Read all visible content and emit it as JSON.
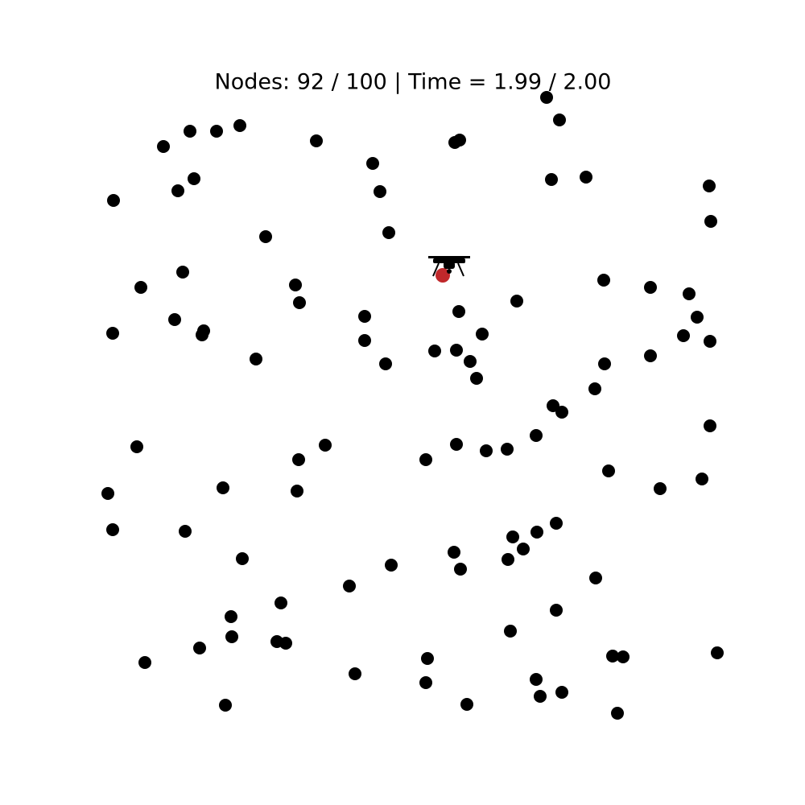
{
  "header": {
    "title": "Nodes: 92 / 100 | Time = 1.99 / 2.00"
  }
}
